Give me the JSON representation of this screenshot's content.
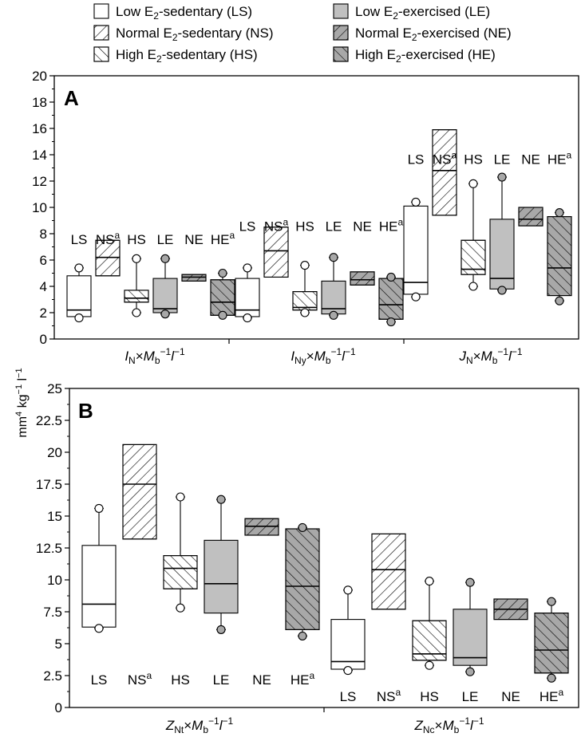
{
  "legend": [
    {
      "code": "LS",
      "label": "Low E2-sedentary (LS)",
      "fill": "#ffffff",
      "hatch": "none",
      "shade": "white"
    },
    {
      "code": "LE",
      "label": "Low E2-exercised (LE)",
      "fill": "#c0c0c0",
      "hatch": "none",
      "shade": "grey"
    },
    {
      "code": "NS",
      "label": "Normal E2-sedentary (NS)",
      "fill": "#ffffff",
      "hatch": "forward",
      "shade": "white"
    },
    {
      "code": "NE",
      "label": "Normal E2-exercised (NE)",
      "fill": "#a8a8a8",
      "hatch": "forward",
      "shade": "grey"
    },
    {
      "code": "HS",
      "label": "High E2-sedentary (HS)",
      "fill": "#ffffff",
      "hatch": "backward",
      "shade": "white"
    },
    {
      "code": "HE",
      "label": "High E2-exercised (HE)",
      "fill": "#a8a8a8",
      "hatch": "backward",
      "shade": "grey"
    }
  ],
  "shared_ylabel": "mm4 kg−1 l−1",
  "chart_data": [
    {
      "type": "box",
      "panel": "A",
      "ylim": [
        0,
        20
      ],
      "yticks": [
        0,
        2,
        4,
        6,
        8,
        10,
        12,
        14,
        16,
        18,
        20
      ],
      "ytick_labels": [
        "0",
        "2",
        "4",
        "6",
        "8",
        "10",
        "12",
        "14",
        "16",
        "18",
        "20"
      ],
      "groups": [
        {
          "xlabel": "IN×Mb−1l−1",
          "series_labels": [
            "LS",
            "NSa",
            "HS",
            "LE",
            "NE",
            "HEa"
          ],
          "label_y": 7.2,
          "boxes": [
            {
              "code": "LS",
              "q1": 1.7,
              "median": 2.2,
              "q3": 4.8,
              "lower": 1.7,
              "upper": 5.4,
              "low_out": 1.6,
              "high_out": 5.4
            },
            {
              "code": "NS",
              "q1": 4.8,
              "median": 6.2,
              "q3": 7.5,
              "lower": null,
              "upper": null,
              "low_out": null,
              "high_out": null
            },
            {
              "code": "HS",
              "q1": 2.8,
              "median": 3.1,
              "q3": 3.7,
              "lower": 2.0,
              "upper": 6.1,
              "low_out": 2.0,
              "high_out": 6.1
            },
            {
              "code": "LE",
              "q1": 2.0,
              "median": 2.3,
              "q3": 4.6,
              "lower": 1.9,
              "upper": 6.1,
              "low_out": 1.9,
              "high_out": 6.1
            },
            {
              "code": "NE",
              "q1": 4.4,
              "median": 4.7,
              "q3": 4.9,
              "lower": null,
              "upper": null,
              "low_out": null,
              "high_out": null
            },
            {
              "code": "HE",
              "q1": 1.8,
              "median": 2.8,
              "q3": 4.5,
              "lower": 1.8,
              "upper": 5.0,
              "low_out": 1.8,
              "high_out": 5.0
            }
          ]
        },
        {
          "xlabel": "INy×Mb−1l−1",
          "series_labels": [
            "LS",
            "NSa",
            "HS",
            "LE",
            "NE",
            "HEa"
          ],
          "label_y": 8.2,
          "boxes": [
            {
              "code": "LS",
              "q1": 1.7,
              "median": 2.2,
              "q3": 4.6,
              "lower": 1.6,
              "upper": 5.4,
              "low_out": 1.6,
              "high_out": 5.4
            },
            {
              "code": "NS",
              "q1": 4.7,
              "median": 6.7,
              "q3": 8.5,
              "lower": null,
              "upper": null,
              "low_out": null,
              "high_out": null
            },
            {
              "code": "HS",
              "q1": 2.2,
              "median": 2.4,
              "q3": 3.6,
              "lower": 2.0,
              "upper": 5.6,
              "low_out": 2.0,
              "high_out": 5.6
            },
            {
              "code": "LE",
              "q1": 1.9,
              "median": 2.3,
              "q3": 4.4,
              "lower": 1.8,
              "upper": 6.2,
              "low_out": 1.8,
              "high_out": 6.2
            },
            {
              "code": "NE",
              "q1": 4.1,
              "median": 4.5,
              "q3": 5.1,
              "lower": null,
              "upper": null,
              "low_out": null,
              "high_out": null
            },
            {
              "code": "HE",
              "q1": 1.5,
              "median": 2.6,
              "q3": 4.6,
              "lower": 1.3,
              "upper": 4.7,
              "low_out": 1.3,
              "high_out": 4.7
            }
          ]
        },
        {
          "xlabel": "JN×Mb−1l−1",
          "series_labels": [
            "LS",
            "NSa",
            "HS",
            "LE",
            "NE",
            "HEa"
          ],
          "label_y": 13.3,
          "boxes": [
            {
              "code": "LS",
              "q1": 3.4,
              "median": 4.3,
              "q3": 10.1,
              "lower": 3.2,
              "upper": 10.4,
              "low_out": 3.2,
              "high_out": 10.4
            },
            {
              "code": "NS",
              "q1": 9.4,
              "median": 12.8,
              "q3": 15.9,
              "lower": null,
              "upper": null,
              "low_out": null,
              "high_out": null
            },
            {
              "code": "HS",
              "q1": 4.9,
              "median": 5.3,
              "q3": 7.5,
              "lower": 4.0,
              "upper": 11.8,
              "low_out": 4.0,
              "high_out": 11.8
            },
            {
              "code": "LE",
              "q1": 3.8,
              "median": 4.6,
              "q3": 9.1,
              "lower": 3.7,
              "upper": 12.3,
              "low_out": 3.7,
              "high_out": 12.3
            },
            {
              "code": "NE",
              "q1": 8.6,
              "median": 9.1,
              "q3": 10.0,
              "lower": null,
              "upper": null,
              "low_out": null,
              "high_out": null
            },
            {
              "code": "HE",
              "q1": 3.3,
              "median": 5.4,
              "q3": 9.3,
              "lower": 2.9,
              "upper": 9.6,
              "low_out": 2.9,
              "high_out": 9.6
            }
          ]
        }
      ]
    },
    {
      "type": "box",
      "panel": "B",
      "ylim": [
        0,
        25
      ],
      "yticks": [
        0,
        2.5,
        5,
        7.5,
        10,
        12.5,
        15,
        17.5,
        20,
        22.5,
        25
      ],
      "ytick_labels": [
        "0",
        "2.5",
        "5",
        "7.5",
        "10",
        "12.5",
        "15",
        "17.5",
        "20",
        "22.5",
        "25"
      ],
      "groups": [
        {
          "xlabel": "ZNt×Mb−1l−1",
          "series_labels": [
            "LS",
            "NSa",
            "HS",
            "LE",
            "NE",
            "HEa"
          ],
          "label_y": 1.8,
          "boxes": [
            {
              "code": "LS",
              "q1": 6.3,
              "median": 8.1,
              "q3": 12.7,
              "lower": 6.2,
              "upper": 15.6,
              "low_out": 6.2,
              "high_out": 15.6
            },
            {
              "code": "NS",
              "q1": 13.2,
              "median": 17.5,
              "q3": 20.6,
              "lower": null,
              "upper": null,
              "low_out": null,
              "high_out": null
            },
            {
              "code": "HS",
              "q1": 9.3,
              "median": 10.9,
              "q3": 11.9,
              "lower": 7.8,
              "upper": 16.5,
              "low_out": 7.8,
              "high_out": 16.5
            },
            {
              "code": "LE",
              "q1": 7.4,
              "median": 9.7,
              "q3": 13.1,
              "lower": 6.1,
              "upper": 16.3,
              "low_out": 6.1,
              "high_out": 16.3
            },
            {
              "code": "NE",
              "q1": 13.5,
              "median": 14.2,
              "q3": 14.8,
              "lower": null,
              "upper": null,
              "low_out": null,
              "high_out": null
            },
            {
              "code": "HE",
              "q1": 6.1,
              "median": 9.5,
              "q3": 14.0,
              "lower": 5.6,
              "upper": 14.1,
              "low_out": 5.6,
              "high_out": 14.1
            }
          ]
        },
        {
          "xlabel": "ZNc×Mb−1l−1",
          "series_labels": [
            "LS",
            "NSa",
            "HS",
            "LE",
            "NE",
            "HEa"
          ],
          "label_y": 0.5,
          "boxes": [
            {
              "code": "LS",
              "q1": 3.0,
              "median": 3.6,
              "q3": 6.9,
              "lower": 2.9,
              "upper": 9.2,
              "low_out": 2.9,
              "high_out": 9.2
            },
            {
              "code": "NS",
              "q1": 7.7,
              "median": 10.8,
              "q3": 13.6,
              "lower": null,
              "upper": null,
              "low_out": null,
              "high_out": null
            },
            {
              "code": "HS",
              "q1": 3.7,
              "median": 4.2,
              "q3": 6.8,
              "lower": 3.3,
              "upper": 9.9,
              "low_out": 3.3,
              "high_out": 9.9
            },
            {
              "code": "LE",
              "q1": 3.3,
              "median": 3.9,
              "q3": 7.7,
              "lower": 2.8,
              "upper": 9.8,
              "low_out": 2.8,
              "high_out": 9.8
            },
            {
              "code": "NE",
              "q1": 6.9,
              "median": 7.7,
              "q3": 8.5,
              "lower": null,
              "upper": null,
              "low_out": null,
              "high_out": null
            },
            {
              "code": "HE",
              "q1": 2.7,
              "median": 4.5,
              "q3": 7.4,
              "lower": 2.3,
              "upper": 8.3,
              "low_out": 2.3,
              "high_out": 8.3
            }
          ]
        }
      ]
    }
  ]
}
